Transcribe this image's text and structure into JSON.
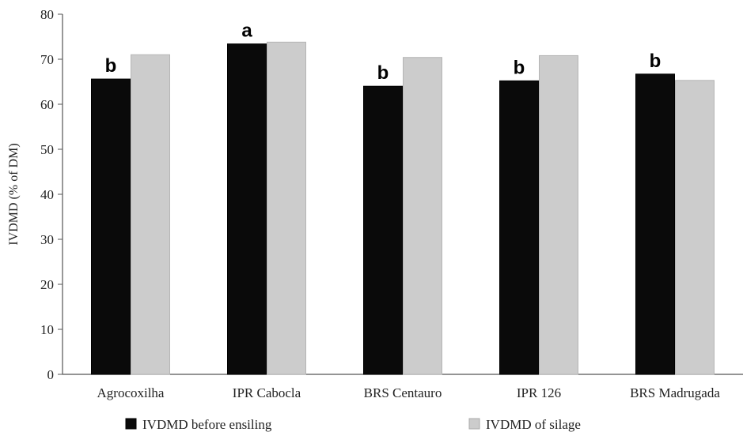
{
  "chart_data": {
    "type": "bar",
    "title": "",
    "xlabel": "",
    "ylabel": "IVDMD (% of DM)",
    "ylim": [
      0,
      80
    ],
    "yticks": [
      0,
      10,
      20,
      30,
      40,
      50,
      60,
      70,
      80
    ],
    "categories": [
      "Agrocoxilha",
      "IPR Cabocla",
      "BRS Centauro",
      "IPR 126",
      "BRS Madrugada"
    ],
    "series": [
      {
        "name": "IVDMD before ensiling",
        "color": "#0a0a0a",
        "values": [
          65.6,
          73.4,
          64.0,
          65.2,
          66.7
        ],
        "labels": [
          "b",
          "a",
          "b",
          "b",
          "b"
        ]
      },
      {
        "name": "IVDMD of silage",
        "color": "#cccccc",
        "values": [
          71.0,
          73.8,
          70.4,
          70.8,
          65.3
        ],
        "labels": []
      }
    ],
    "legend": "bottom",
    "grid": false
  }
}
